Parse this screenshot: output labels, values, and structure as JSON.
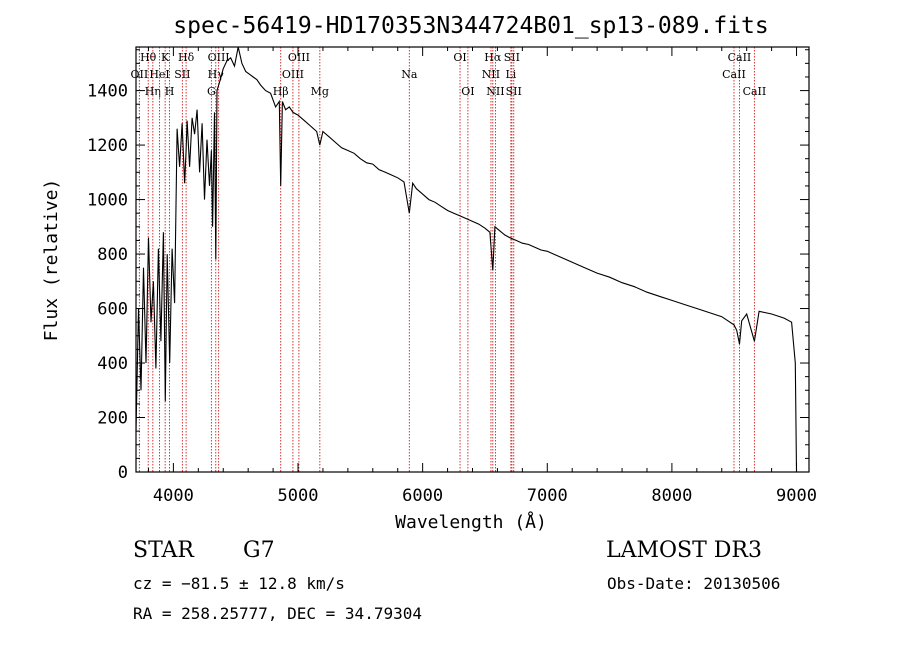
{
  "chart_data": {
    "type": "line",
    "title": "spec-56419-HD170353N344724B01_sp13-089.fits",
    "xlabel": "Wavelength (Å)",
    "ylabel": "Flux (relative)",
    "xlim": [
      3700,
      9100
    ],
    "ylim": [
      0,
      1560
    ],
    "xticks": [
      4000,
      5000,
      6000,
      7000,
      8000,
      9000
    ],
    "yticks": [
      0,
      200,
      400,
      600,
      800,
      1000,
      1200,
      1400
    ],
    "grid": false,
    "series": [
      {
        "name": "flux",
        "x": [
          3700,
          3720,
          3740,
          3760,
          3780,
          3800,
          3820,
          3840,
          3860,
          3880,
          3900,
          3920,
          3935,
          3950,
          3970,
          3990,
          4010,
          4030,
          4050,
          4070,
          4090,
          4102,
          4110,
          4130,
          4150,
          4170,
          4190,
          4210,
          4230,
          4250,
          4270,
          4290,
          4305,
          4315,
          4330,
          4340,
          4350,
          4370,
          4400,
          4430,
          4460,
          4490,
          4520,
          4550,
          4580,
          4610,
          4640,
          4670,
          4700,
          4740,
          4780,
          4820,
          4850,
          4861,
          4875,
          4900,
          4930,
          4960,
          5000,
          5050,
          5100,
          5150,
          5175,
          5200,
          5250,
          5300,
          5350,
          5400,
          5450,
          5500,
          5550,
          5600,
          5650,
          5700,
          5750,
          5800,
          5850,
          5893,
          5920,
          5950,
          6000,
          6050,
          6100,
          6150,
          6200,
          6250,
          6300,
          6350,
          6400,
          6450,
          6500,
          6540,
          6563,
          6580,
          6620,
          6660,
          6700,
          6750,
          6800,
          6850,
          6900,
          6950,
          7000,
          7100,
          7200,
          7300,
          7400,
          7500,
          7600,
          7700,
          7800,
          7900,
          8000,
          8100,
          8200,
          8300,
          8400,
          8498,
          8520,
          8542,
          8560,
          8600,
          8662,
          8700,
          8800,
          8900,
          8960,
          8990,
          9000
        ],
        "y": [
          150,
          600,
          300,
          750,
          400,
          860,
          550,
          700,
          380,
          820,
          480,
          880,
          260,
          800,
          400,
          820,
          620,
          1260,
          1120,
          1280,
          1060,
          1180,
          1290,
          1120,
          1300,
          1240,
          1330,
          1100,
          1280,
          1000,
          1220,
          1050,
          1180,
          900,
          1320,
          780,
          1400,
          1430,
          1480,
          1510,
          1520,
          1490,
          1560,
          1500,
          1470,
          1460,
          1450,
          1440,
          1420,
          1400,
          1390,
          1340,
          1360,
          1050,
          1360,
          1330,
          1340,
          1320,
          1310,
          1290,
          1270,
          1250,
          1200,
          1250,
          1230,
          1210,
          1190,
          1180,
          1170,
          1150,
          1135,
          1130,
          1110,
          1100,
          1090,
          1080,
          1065,
          950,
          1060,
          1040,
          1020,
          1000,
          990,
          975,
          960,
          950,
          940,
          930,
          920,
          910,
          895,
          880,
          740,
          900,
          885,
          870,
          860,
          850,
          840,
          835,
          825,
          815,
          810,
          790,
          770,
          750,
          730,
          715,
          695,
          680,
          660,
          645,
          630,
          615,
          600,
          585,
          570,
          540,
          520,
          470,
          555,
          580,
          480,
          590,
          580,
          565,
          550,
          400,
          0
        ]
      }
    ],
    "line_markers": [
      {
        "label": "Hθ",
        "x": 3798,
        "row": 1
      },
      {
        "label": "OII",
        "x": 3727,
        "row": 2
      },
      {
        "label": "Hη",
        "x": 3835,
        "row": 3
      },
      {
        "label": "K",
        "x": 3934,
        "row": 1
      },
      {
        "label": "HeI",
        "x": 3889,
        "row": 2
      },
      {
        "label": "SII",
        "x": 4072,
        "row": 2
      },
      {
        "label": "H",
        "x": 3969,
        "row": 3
      },
      {
        "label": "Hδ",
        "x": 4102,
        "row": 1
      },
      {
        "label": "OIII",
        "x": 4363,
        "row": 1
      },
      {
        "label": "Hγ",
        "x": 4340,
        "row": 2
      },
      {
        "label": "G",
        "x": 4305,
        "row": 3
      },
      {
        "label": "Hβ",
        "x": 4861,
        "row": 3
      },
      {
        "label": "OIII",
        "x": 5007,
        "row": 1
      },
      {
        "label": "OIII",
        "x": 4959,
        "row": 2
      },
      {
        "label": "Mg",
        "x": 5175,
        "row": 3
      },
      {
        "label": "Na",
        "x": 5893,
        "row": 2
      },
      {
        "label": "OI",
        "x": 6300,
        "row": 1
      },
      {
        "label": "OI",
        "x": 6363,
        "row": 3
      },
      {
        "label": "Hα",
        "x": 6563,
        "row": 1
      },
      {
        "label": "SII",
        "x": 6716,
        "row": 1
      },
      {
        "label": "NII",
        "x": 6548,
        "row": 2
      },
      {
        "label": "Li",
        "x": 6708,
        "row": 2
      },
      {
        "label": "NII",
        "x": 6584,
        "row": 3
      },
      {
        "label": "SII",
        "x": 6731,
        "row": 3
      },
      {
        "label": "CaII",
        "x": 8542,
        "row": 1
      },
      {
        "label": "CaII",
        "x": 8498,
        "row": 2
      },
      {
        "label": "CaII",
        "x": 8662,
        "row": 3
      }
    ]
  },
  "info": {
    "object_class": "STAR",
    "subclass": "G7",
    "survey": "LAMOST DR3",
    "redshift": "cz = −81.5 ± 12.8 km/s",
    "obs_date": "Obs-Date: 20130506",
    "coords": "RA = 258.25777, DEC =  34.79304"
  },
  "colors": {
    "line": "#000000",
    "marker": "#cc2222"
  }
}
